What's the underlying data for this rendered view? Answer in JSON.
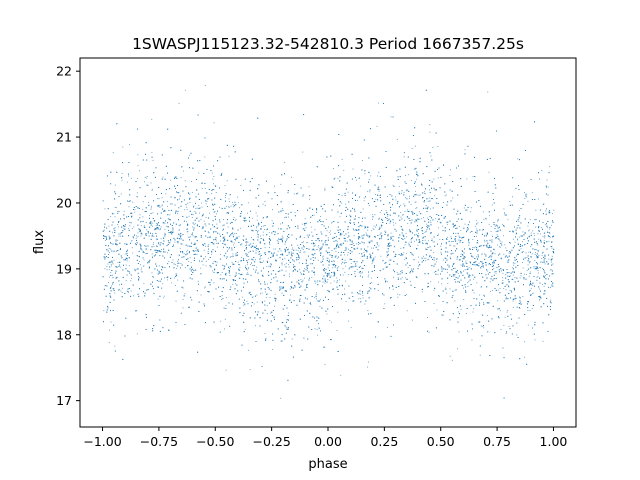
{
  "chart_data": {
    "type": "scatter",
    "title": "1SWASPJ115123.32-542810.3 Period 1667357.25s",
    "xlabel": "phase",
    "ylabel": "flux",
    "xlim": [
      -1.1,
      1.1
    ],
    "ylim": [
      16.6,
      22.2
    ],
    "x_ticks": [
      -1.0,
      -0.75,
      -0.5,
      -0.25,
      0.0,
      0.25,
      0.5,
      0.75,
      1.0
    ],
    "x_tick_labels": [
      "−1.00",
      "−0.75",
      "−0.50",
      "−0.25",
      "0.00",
      "0.25",
      "0.50",
      "0.75",
      "1.00"
    ],
    "y_ticks": [
      17,
      18,
      19,
      20,
      21,
      22
    ],
    "y_tick_labels": [
      "17",
      "18",
      "19",
      "20",
      "21",
      "22"
    ],
    "grid": false,
    "marker_color": "#1f77b4",
    "series": [
      {
        "x_range": [
          -1.0,
          1.0
        ],
        "trend": [
          {
            "phase": -1.0,
            "flux_mean": 19.2
          },
          {
            "phase": -0.9,
            "flux_mean": 19.35
          },
          {
            "phase": -0.75,
            "flux_mean": 19.5
          },
          {
            "phase": -0.6,
            "flux_mean": 19.6
          },
          {
            "phase": -0.55,
            "flux_mean": 19.65
          },
          {
            "phase": -0.45,
            "flux_mean": 19.3
          },
          {
            "phase": -0.3,
            "flux_mean": 19.15
          },
          {
            "phase": -0.15,
            "flux_mean": 19.05
          },
          {
            "phase": 0.0,
            "flux_mean": 19.2
          },
          {
            "phase": 0.1,
            "flux_mean": 19.35
          },
          {
            "phase": 0.25,
            "flux_mean": 19.5
          },
          {
            "phase": 0.4,
            "flux_mean": 19.6
          },
          {
            "phase": 0.45,
            "flux_mean": 19.65
          },
          {
            "phase": 0.55,
            "flux_mean": 19.3
          },
          {
            "phase": 0.7,
            "flux_mean": 19.15
          },
          {
            "phase": 0.85,
            "flux_mean": 19.05
          },
          {
            "phase": 1.0,
            "flux_mean": 19.2
          }
        ]
      }
    ]
  }
}
